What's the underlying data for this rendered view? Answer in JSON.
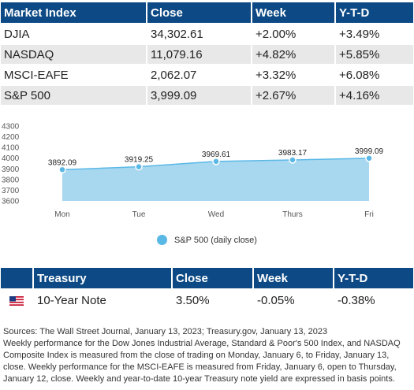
{
  "market_table": {
    "headers": [
      "Market Index",
      "Close",
      "Week",
      "Y-T-D"
    ],
    "rows": [
      [
        "DJIA",
        "34,302.61",
        "+2.00%",
        "+3.49%"
      ],
      [
        "NASDAQ",
        "11,079.16",
        "+4.82%",
        "+5.85%"
      ],
      [
        "MSCI-EAFE",
        "2,062.07",
        "+3.32%",
        "+6.08%"
      ],
      [
        "S&P 500",
        "3,999.09",
        "+2.67%",
        "+4.16%"
      ]
    ]
  },
  "chart_data": {
    "type": "area",
    "categories": [
      "Mon",
      "Tue",
      "Wed",
      "Thurs",
      "Fri"
    ],
    "series": [
      {
        "name": "S&P 500 (daily close)",
        "values": [
          3892.09,
          3919.25,
          3969.61,
          3983.17,
          3999.09
        ]
      }
    ],
    "data_labels": [
      "3892.09",
      "3919.25",
      "3969.61",
      "3983.17",
      "3999.09"
    ],
    "yticks": [
      "3600",
      "3700",
      "3800",
      "3900",
      "4000",
      "4100",
      "4200",
      "4300"
    ],
    "ylim": [
      3600,
      4300
    ],
    "legend_position": "bottom-center",
    "colors": {
      "area": "#a8d8f0",
      "line": "#5ab8e6"
    },
    "grid": false
  },
  "treasury_table": {
    "headers": [
      "Treasury",
      "Close",
      "Week",
      "Y-T-D"
    ],
    "row": {
      "flag_icon": "us-flag-icon",
      "name": "10-Year Note",
      "close": "3.50%",
      "week": "-0.05%",
      "ytd": "-0.38%"
    }
  },
  "sources": {
    "line1": "Sources: The Wall Street Journal, January 13, 2023; Treasury.gov, January 13, 2023",
    "line2": "Weekly performance for the Dow Jones Industrial Average, Standard & Poor's 500 Index, and NASDAQ Composite Index is measured from the close of trading on Monday, January 6, to Friday, January 13, close. Weekly performance for the MSCI-EAFE is measured from Friday, January 6, open to Thursday, January 12, close. Weekly and year-to-date 10-year Treasury note yield are expressed in basis points."
  },
  "colors": {
    "header_bg": "#0d4a85",
    "row_alt": "#e8e8e8"
  }
}
